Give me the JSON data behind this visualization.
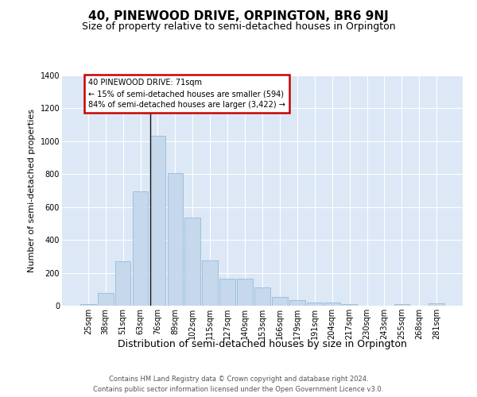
{
  "title": "40, PINEWOOD DRIVE, ORPINGTON, BR6 9NJ",
  "subtitle": "Size of property relative to semi-detached houses in Orpington",
  "xlabel": "Distribution of semi-detached houses by size in Orpington",
  "ylabel": "Number of semi-detached properties",
  "footer1": "Contains HM Land Registry data © Crown copyright and database right 2024.",
  "footer2": "Contains public sector information licensed under the Open Government Licence v3.0.",
  "annotation_line1": "40 PINEWOOD DRIVE: 71sqm",
  "annotation_line2": "← 15% of semi-detached houses are smaller (594)",
  "annotation_line3": "84% of semi-detached houses are larger (3,422) →",
  "bar_labels": [
    "25sqm",
    "38sqm",
    "51sqm",
    "63sqm",
    "76sqm",
    "89sqm",
    "102sqm",
    "115sqm",
    "127sqm",
    "140sqm",
    "153sqm",
    "166sqm",
    "179sqm",
    "191sqm",
    "204sqm",
    "217sqm",
    "230sqm",
    "243sqm",
    "255sqm",
    "268sqm",
    "281sqm"
  ],
  "bar_values": [
    10,
    75,
    270,
    695,
    1035,
    805,
    535,
    275,
    165,
    165,
    110,
    55,
    35,
    20,
    18,
    12,
    0,
    0,
    10,
    0,
    15
  ],
  "bar_color": "#c5d8ec",
  "bar_edge_color": "#8ab4d4",
  "vline_color": "#111111",
  "annotation_box_edgecolor": "#cc0000",
  "plot_bg_color": "#dce8f5",
  "fig_bg_color": "#ffffff",
  "ylim": [
    0,
    1400
  ],
  "yticks": [
    0,
    200,
    400,
    600,
    800,
    1000,
    1200,
    1400
  ],
  "title_fontsize": 11,
  "subtitle_fontsize": 9,
  "ylabel_fontsize": 8,
  "xlabel_fontsize": 9,
  "tick_fontsize": 7,
  "footer_fontsize": 6,
  "annot_fontsize": 7
}
